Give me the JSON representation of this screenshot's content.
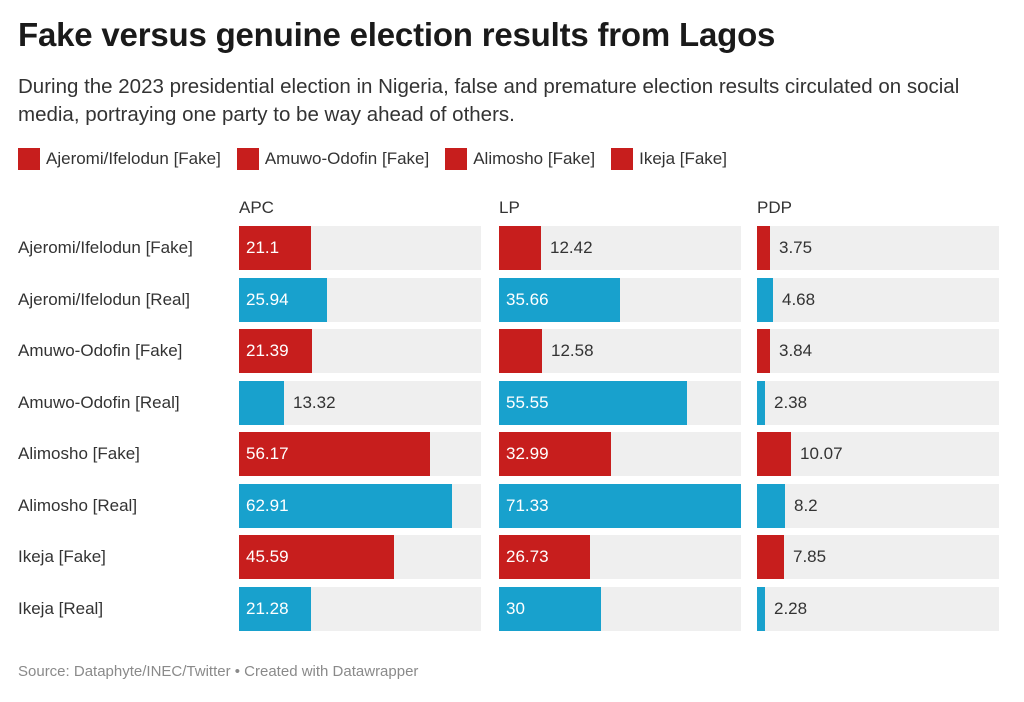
{
  "title": "Fake versus genuine election results from Lagos",
  "subtitle": "During the 2023 presidential election in Nigeria, false and premature election results circulated on social media, portraying one party to be way ahead of others.",
  "source": "Source: Dataphyte/INEC/Twitter • Created with Datawrapper",
  "colors": {
    "fake": "#c71e1d",
    "real": "#18a1cd",
    "track": "#efefef"
  },
  "legend": [
    {
      "label": "Ajeromi/Ifelodun [Fake]",
      "color": "#c71e1d"
    },
    {
      "label": "Amuwo-Odofin [Fake]",
      "color": "#c71e1d"
    },
    {
      "label": "Alimosho [Fake]",
      "color": "#c71e1d"
    },
    {
      "label": "Ikeja [Fake]",
      "color": "#c71e1d"
    }
  ],
  "chart_data": {
    "type": "bar",
    "orientation": "horizontal",
    "panels": [
      "APC",
      "LP",
      "PDP"
    ],
    "xlim": [
      0,
      71.33
    ],
    "categories": [
      "Ajeromi/Ifelodun [Fake]",
      "Ajeromi/Ifelodun [Real]",
      "Amuwo-Odofin [Fake]",
      "Amuwo-Odofin [Real]",
      "Alimosho [Fake]",
      "Alimosho [Real]",
      "Ikeja [Fake]",
      "Ikeja [Real]"
    ],
    "kinds": [
      "fake",
      "real",
      "fake",
      "real",
      "fake",
      "real",
      "fake",
      "real"
    ],
    "series": [
      {
        "name": "APC",
        "values": [
          21.1,
          25.94,
          21.39,
          13.32,
          56.17,
          62.91,
          45.59,
          21.28
        ]
      },
      {
        "name": "LP",
        "values": [
          12.42,
          35.66,
          12.58,
          55.55,
          32.99,
          71.33,
          26.73,
          30
        ]
      },
      {
        "name": "PDP",
        "values": [
          3.75,
          4.68,
          3.84,
          2.38,
          10.07,
          8.2,
          7.85,
          2.28
        ]
      }
    ]
  }
}
